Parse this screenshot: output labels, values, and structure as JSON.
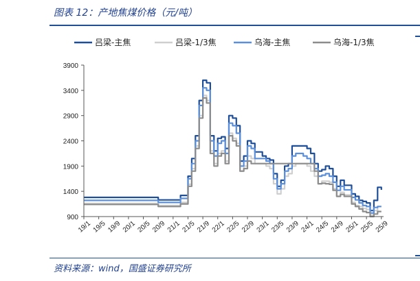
{
  "header": {
    "title": "图表 12：产地焦煤价格（元/吨）"
  },
  "footer": {
    "source": "资料来源：wind，国盛证券研究所"
  },
  "chart_data": {
    "type": "line",
    "title": "",
    "xlabel": "",
    "ylabel": "",
    "ylim": [
      900,
      3900
    ],
    "yticks": [
      900,
      1400,
      1900,
      2400,
      2900,
      3400,
      3900
    ],
    "xticks": [
      "19/1",
      "19/5",
      "19/9",
      "20/1",
      "20/5",
      "20/9",
      "21/1",
      "21/5",
      "21/9",
      "22/1",
      "22/5",
      "22/9",
      "23/1",
      "23/5",
      "23/9",
      "24/1",
      "24/5",
      "24/9",
      "25/1",
      "25/5",
      "25/9"
    ],
    "grid": false,
    "legend_position": "top",
    "series": [
      {
        "name": "吕梁-主焦",
        "color": "#1f4e99",
        "width": 2.2,
        "points": [
          [
            "19/1",
            1280
          ],
          [
            "20/5",
            1280
          ],
          [
            "20/9",
            1230
          ],
          [
            "21/1",
            1230
          ],
          [
            "21/3",
            1320
          ],
          [
            "21/5",
            1700
          ],
          [
            "21/6",
            2050
          ],
          [
            "21/7",
            2500
          ],
          [
            "21/8",
            3200
          ],
          [
            "21/9",
            3600
          ],
          [
            "21/10",
            3550
          ],
          [
            "21/11",
            2500
          ],
          [
            "21/12",
            2200
          ],
          [
            "22/1",
            2450
          ],
          [
            "22/2",
            2480
          ],
          [
            "22/3",
            2250
          ],
          [
            "22/4",
            2900
          ],
          [
            "22/5",
            2850
          ],
          [
            "22/6",
            2700
          ],
          [
            "22/7",
            2000
          ],
          [
            "22/8",
            2100
          ],
          [
            "22/9",
            2400
          ],
          [
            "22/10",
            2350
          ],
          [
            "22/11",
            2180
          ],
          [
            "23/1",
            2100
          ],
          [
            "23/2",
            2050
          ],
          [
            "23/3",
            2020
          ],
          [
            "23/4",
            1750
          ],
          [
            "23/5",
            1500
          ],
          [
            "23/6",
            1620
          ],
          [
            "23/7",
            1900
          ],
          [
            "23/8",
            1950
          ],
          [
            "23/9",
            2300
          ],
          [
            "23/10",
            2300
          ],
          [
            "23/12",
            2300
          ],
          [
            "24/1",
            2250
          ],
          [
            "24/2",
            2150
          ],
          [
            "24/3",
            1950
          ],
          [
            "24/4",
            1800
          ],
          [
            "24/5",
            1830
          ],
          [
            "24/6",
            1900
          ],
          [
            "24/7",
            1850
          ],
          [
            "24/8",
            1700
          ],
          [
            "24/9",
            1500
          ],
          [
            "24/10",
            1620
          ],
          [
            "24/11",
            1520
          ],
          [
            "25/1",
            1350
          ],
          [
            "25/2",
            1300
          ],
          [
            "25/3",
            1220
          ],
          [
            "25/4",
            1200
          ],
          [
            "25/5",
            1170
          ],
          [
            "25/6",
            1020
          ],
          [
            "25/7",
            1220
          ],
          [
            "25/8",
            1480
          ],
          [
            "25/9",
            1430
          ]
        ]
      },
      {
        "name": "吕梁-1/3焦",
        "color": "#cfcfcf",
        "width": 2.2,
        "points": [
          [
            "19/1",
            1160
          ],
          [
            "20/5",
            1160
          ],
          [
            "20/9",
            1120
          ],
          [
            "21/1",
            1120
          ],
          [
            "21/3",
            1180
          ],
          [
            "21/5",
            1540
          ],
          [
            "21/6",
            1850
          ],
          [
            "21/7",
            2300
          ],
          [
            "21/8",
            2900
          ],
          [
            "21/9",
            3300
          ],
          [
            "21/10",
            3200
          ],
          [
            "21/11",
            2200
          ],
          [
            "21/12",
            1950
          ],
          [
            "22/1",
            2150
          ],
          [
            "22/2",
            2200
          ],
          [
            "22/3",
            2000
          ],
          [
            "22/4",
            2550
          ],
          [
            "22/5",
            2450
          ],
          [
            "22/6",
            2350
          ],
          [
            "22/7",
            1800
          ],
          [
            "22/8",
            1900
          ],
          [
            "22/9",
            2100
          ],
          [
            "22/10",
            2050
          ],
          [
            "22/11",
            1950
          ],
          [
            "23/1",
            1950
          ],
          [
            "23/2",
            1900
          ],
          [
            "23/3",
            1850
          ],
          [
            "23/4",
            1550
          ],
          [
            "23/5",
            1350
          ],
          [
            "23/6",
            1450
          ],
          [
            "23/7",
            1700
          ],
          [
            "23/8",
            1750
          ],
          [
            "23/9",
            1900
          ],
          [
            "23/10",
            1950
          ],
          [
            "23/12",
            1950
          ],
          [
            "24/1",
            1900
          ],
          [
            "24/2",
            1800
          ],
          [
            "24/3",
            1700
          ],
          [
            "24/4",
            1550
          ],
          [
            "24/5",
            1600
          ],
          [
            "24/6",
            1600
          ],
          [
            "24/7",
            1580
          ],
          [
            "24/8",
            1450
          ],
          [
            "24/9",
            1300
          ],
          [
            "24/10",
            1380
          ],
          [
            "24/11",
            1330
          ],
          [
            "25/1",
            1180
          ],
          [
            "25/2",
            1120
          ],
          [
            "25/3",
            1100
          ],
          [
            "25/4",
            1060
          ],
          [
            "25/5",
            1040
          ],
          [
            "25/6",
            930
          ],
          [
            "25/7",
            1020
          ],
          [
            "25/8",
            1100
          ],
          [
            "25/9",
            1100
          ]
        ]
      },
      {
        "name": "乌海-主焦",
        "color": "#5b8fd9",
        "width": 2.2,
        "points": [
          [
            "19/1",
            1220
          ],
          [
            "20/5",
            1220
          ],
          [
            "20/9",
            1180
          ],
          [
            "21/1",
            1180
          ],
          [
            "21/3",
            1260
          ],
          [
            "21/5",
            1650
          ],
          [
            "21/6",
            1950
          ],
          [
            "21/7",
            2400
          ],
          [
            "21/8",
            3100
          ],
          [
            "21/9",
            3450
          ],
          [
            "21/10",
            3400
          ],
          [
            "21/11",
            2400
          ],
          [
            "21/12",
            2100
          ],
          [
            "22/1",
            2350
          ],
          [
            "22/2",
            2400
          ],
          [
            "22/3",
            2150
          ],
          [
            "22/4",
            2750
          ],
          [
            "22/5",
            2700
          ],
          [
            "22/6",
            2550
          ],
          [
            "22/7",
            1900
          ],
          [
            "22/8",
            2000
          ],
          [
            "22/9",
            2300
          ],
          [
            "22/10",
            2250
          ],
          [
            "22/11",
            2050
          ],
          [
            "23/1",
            2050
          ],
          [
            "23/2",
            2000
          ],
          [
            "23/3",
            1950
          ],
          [
            "23/4",
            1650
          ],
          [
            "23/5",
            1450
          ],
          [
            "23/6",
            1550
          ],
          [
            "23/7",
            1800
          ],
          [
            "23/8",
            1850
          ],
          [
            "23/9",
            2100
          ],
          [
            "23/10",
            2150
          ],
          [
            "23/12",
            2100
          ],
          [
            "24/1",
            2050
          ],
          [
            "24/2",
            1950
          ],
          [
            "24/3",
            1850
          ],
          [
            "24/4",
            1700
          ],
          [
            "24/5",
            1720
          ],
          [
            "24/6",
            1750
          ],
          [
            "24/7",
            1700
          ],
          [
            "24/8",
            1580
          ],
          [
            "24/9",
            1420
          ],
          [
            "24/10",
            1500
          ],
          [
            "24/11",
            1430
          ],
          [
            "25/1",
            1280
          ],
          [
            "25/2",
            1230
          ],
          [
            "25/3",
            1170
          ],
          [
            "25/4",
            1120
          ],
          [
            "25/5",
            1100
          ],
          [
            "25/6",
            970
          ],
          [
            "25/7",
            1080
          ],
          [
            "25/8",
            1100
          ],
          [
            "25/9",
            1100
          ]
        ]
      },
      {
        "name": "乌海-1/3焦",
        "color": "#8c8c8c",
        "width": 2.2,
        "points": [
          [
            "19/1",
            1140
          ],
          [
            "20/5",
            1140
          ],
          [
            "20/9",
            1100
          ],
          [
            "21/1",
            1100
          ],
          [
            "21/3",
            1150
          ],
          [
            "21/5",
            1500
          ],
          [
            "21/6",
            1800
          ],
          [
            "21/7",
            2250
          ],
          [
            "21/8",
            2850
          ],
          [
            "21/9",
            3250
          ],
          [
            "21/10",
            3150
          ],
          [
            "21/11",
            2150
          ],
          [
            "21/12",
            1900
          ],
          [
            "22/1",
            2100
          ],
          [
            "22/2",
            2150
          ],
          [
            "22/3",
            1950
          ],
          [
            "22/4",
            2500
          ],
          [
            "22/5",
            2400
          ],
          [
            "22/6",
            2300
          ],
          [
            "22/7",
            1800
          ],
          [
            "22/8",
            1850
          ],
          [
            "22/9",
            2000
          ],
          [
            "22/10",
            1950
          ],
          [
            "22/11",
            1950
          ],
          [
            "23/1",
            1950
          ],
          [
            "23/2",
            1950
          ],
          [
            "23/3",
            1950
          ],
          [
            "23/4",
            1950
          ],
          [
            "23/5",
            1950
          ],
          [
            "23/6",
            1950
          ],
          [
            "23/7",
            1950
          ],
          [
            "23/8",
            1950
          ],
          [
            "23/9",
            1950
          ],
          [
            "23/10",
            1950
          ],
          [
            "23/12",
            1950
          ],
          [
            "24/1",
            1950
          ],
          [
            "24/2",
            1950
          ],
          [
            "24/3",
            1800
          ],
          [
            "24/4",
            1550
          ],
          [
            "24/5",
            1560
          ],
          [
            "24/6",
            1550
          ],
          [
            "24/7",
            1540
          ],
          [
            "24/8",
            1420
          ],
          [
            "24/9",
            1300
          ],
          [
            "24/10",
            1340
          ],
          [
            "24/11",
            1300
          ],
          [
            "25/1",
            1150
          ],
          [
            "25/2",
            1100
          ],
          [
            "25/3",
            1050
          ],
          [
            "25/4",
            1000
          ],
          [
            "25/5",
            980
          ],
          [
            "25/6",
            900
          ],
          [
            "25/7",
            950
          ],
          [
            "25/8",
            1000
          ],
          [
            "25/9",
            1000
          ]
        ]
      }
    ]
  }
}
